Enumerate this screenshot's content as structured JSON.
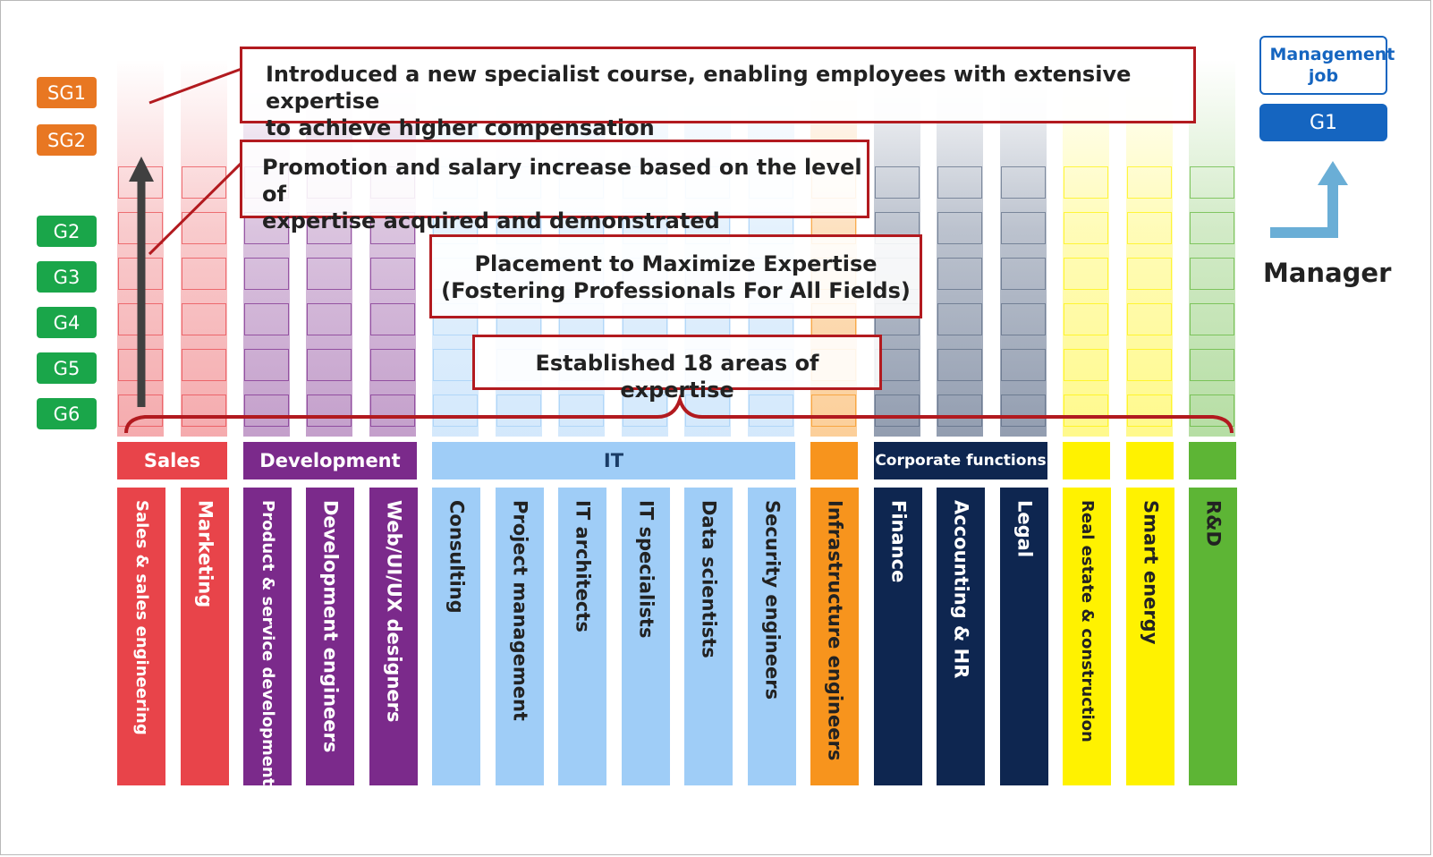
{
  "grades": [
    {
      "label": "SG1",
      "color": "#e87722"
    },
    {
      "label": "SG2",
      "color": "#e87722"
    },
    {
      "label": "G2",
      "color": "#1aa64a"
    },
    {
      "label": "G3",
      "color": "#1aa64a"
    },
    {
      "label": "G4",
      "color": "#1aa64a"
    },
    {
      "label": "G5",
      "color": "#1aa64a"
    },
    {
      "label": "G6",
      "color": "#1aa64a"
    }
  ],
  "categories": [
    {
      "key": "sales",
      "label": "Sales",
      "color": "#e8444a"
    },
    {
      "key": "development",
      "label": "Development",
      "color": "#7b2a8b"
    },
    {
      "key": "it",
      "label": "IT",
      "color": "#9fcdf7",
      "text_color": "#1a3c66"
    },
    {
      "key": "infra",
      "label": "",
      "color": "#f7941d"
    },
    {
      "key": "corporate",
      "label": "Corporate functions",
      "color": "#0e2650"
    },
    {
      "key": "realestate",
      "label": "",
      "color": "#fff200"
    },
    {
      "key": "smart",
      "label": "",
      "color": "#fff200"
    },
    {
      "key": "rd",
      "label": "",
      "color": "#5db535"
    }
  ],
  "fields": [
    {
      "label": "Sales & sales engineering",
      "color": "#e8444a",
      "text_color": "#ffffff"
    },
    {
      "label": "Marketing",
      "color": "#e8444a",
      "text_color": "#ffffff"
    },
    {
      "label": "Product & service development",
      "color": "#7b2a8b",
      "text_color": "#ffffff"
    },
    {
      "label": "Development engineers",
      "color": "#7b2a8b",
      "text_color": "#ffffff"
    },
    {
      "label": "Web/UI/UX designers",
      "color": "#7b2a8b",
      "text_color": "#ffffff"
    },
    {
      "label": "Consulting",
      "color": "#9fcdf7",
      "text_color": "#222222"
    },
    {
      "label": "Project management",
      "color": "#9fcdf7",
      "text_color": "#222222"
    },
    {
      "label": "IT architects",
      "color": "#9fcdf7",
      "text_color": "#222222"
    },
    {
      "label": "IT specialists",
      "color": "#9fcdf7",
      "text_color": "#222222"
    },
    {
      "label": "Data scientists",
      "color": "#9fcdf7",
      "text_color": "#222222"
    },
    {
      "label": "Security engineers",
      "color": "#9fcdf7",
      "text_color": "#222222"
    },
    {
      "label": "Infrastructure engineers",
      "color": "#f7941d",
      "text_color": "#222222"
    },
    {
      "label": "Finance",
      "color": "#0e2650",
      "text_color": "#ffffff"
    },
    {
      "label": "Accounting & HR",
      "color": "#0e2650",
      "text_color": "#ffffff"
    },
    {
      "label": "Legal",
      "color": "#0e2650",
      "text_color": "#ffffff"
    },
    {
      "label": "Real estate & construction",
      "color": "#fff200",
      "text_color": "#222222"
    },
    {
      "label": "Smart energy",
      "color": "#fff200",
      "text_color": "#222222"
    },
    {
      "label": "R&D",
      "color": "#5db535",
      "text_color": "#222222"
    }
  ],
  "callouts": {
    "specialist": {
      "line1": "Introduced a new specialist course, enabling employees with extensive expertise",
      "line2": "to achieve higher compensation"
    },
    "promotion": {
      "line1": "Promotion and salary increase based on the level of",
      "line2": "expertise acquired and demonstrated"
    },
    "placement": {
      "line1": "Placement to Maximize Expertise",
      "line2": "(Fostering Professionals For All Fields)"
    },
    "established": {
      "line1": "Established 18 areas of expertise"
    }
  },
  "management": {
    "job_label": "Management job",
    "grade": "G1",
    "manager_label": "Manager"
  },
  "colors": {
    "callout_border": "#b21a1f",
    "arrow": "#404040",
    "management_blue": "#1565c0",
    "elbow_arrow": "#6aaed6"
  }
}
